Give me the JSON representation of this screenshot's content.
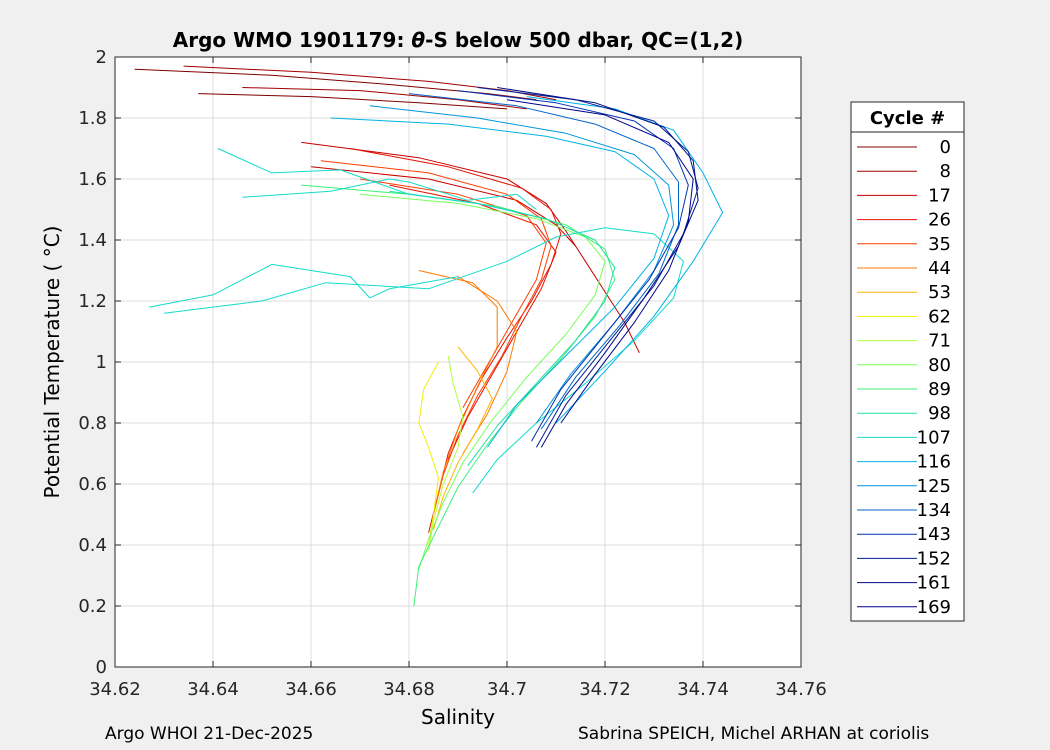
{
  "chart_data": {
    "type": "line",
    "title_prefix": "Argo WMO 1901179: ",
    "title_theta": "θ",
    "title_suffix": "-S below 500 dbar,  QC=(1,2)",
    "xlabel": "Salinity",
    "ylabel": "Potential Temperature ( °C)",
    "xlim": [
      34.62,
      34.76
    ],
    "ylim": [
      0,
      2
    ],
    "xticks": [
      34.62,
      34.64,
      34.66,
      34.68,
      34.7,
      34.72,
      34.74,
      34.76
    ],
    "xtick_labels": [
      "34.62",
      "34.64",
      "34.66",
      "34.68",
      "34.7",
      "34.72",
      "34.74",
      "34.76"
    ],
    "yticks": [
      0,
      0.2,
      0.4,
      0.6,
      0.8,
      1,
      1.2,
      1.4,
      1.6,
      1.8,
      2
    ],
    "ytick_labels": [
      "0",
      "0.2",
      "0.4",
      "0.6",
      "0.8",
      "1",
      "1.2",
      "1.4",
      "1.6",
      "1.8",
      "2"
    ],
    "grid": true,
    "legend": {
      "title": "Cycle #",
      "placement": "outside-right",
      "entries": [
        "0",
        "8",
        "17",
        "26",
        "35",
        "44",
        "53",
        "62",
        "71",
        "80",
        "89",
        "98",
        "107",
        "116",
        "125",
        "134",
        "143",
        "152",
        "161",
        "169"
      ],
      "colors": [
        "#800000",
        "#a00000",
        "#c80000",
        "#e60f00",
        "#ff3c00",
        "#ff7800",
        "#ffb400",
        "#f0f000",
        "#b4ff3c",
        "#78ff5a",
        "#3cf078",
        "#20e0a0",
        "#14dccc",
        "#00b4e6",
        "#0096dc",
        "#0064c8",
        "#0032b4",
        "#001e96",
        "#000a82",
        "#00008c"
      ]
    },
    "series_note": "colour runs dark red (cycle 0) to dark blue (cycle 169)",
    "series": [
      {
        "name": "0",
        "color": "#800000",
        "x": [
          34.624,
          34.652,
          34.676,
          34.696,
          34.706
        ],
        "y": [
          1.96,
          1.94,
          1.91,
          1.88,
          1.86
        ]
      },
      {
        "name": "0b",
        "color": "#800000",
        "x": [
          34.637,
          34.66,
          34.682,
          34.7
        ],
        "y": [
          1.88,
          1.87,
          1.85,
          1.83
        ]
      },
      {
        "name": "8",
        "color": "#a00000",
        "x": [
          34.634,
          34.66,
          34.684,
          34.7,
          34.71
        ],
        "y": [
          1.97,
          1.95,
          1.92,
          1.89,
          1.86
        ]
      },
      {
        "name": "8b",
        "color": "#a00000",
        "x": [
          34.646,
          34.67,
          34.69,
          34.704
        ],
        "y": [
          1.9,
          1.89,
          1.86,
          1.83
        ]
      },
      {
        "name": "17",
        "color": "#c80000",
        "x": [
          34.658,
          34.682,
          34.7,
          34.708,
          34.712,
          34.716,
          34.72,
          34.724,
          34.727
        ],
        "y": [
          1.72,
          1.67,
          1.6,
          1.52,
          1.43,
          1.33,
          1.23,
          1.13,
          1.03
        ]
      },
      {
        "name": "17b",
        "color": "#c80000",
        "x": [
          34.66,
          34.684,
          34.702,
          34.71,
          34.714
        ],
        "y": [
          1.64,
          1.6,
          1.53,
          1.45,
          1.38
        ]
      },
      {
        "name": "26",
        "color": "#e60f00",
        "x": [
          34.668,
          34.688,
          34.703,
          34.709,
          34.711,
          34.709,
          34.705,
          34.7,
          34.695,
          34.691,
          34.688,
          34.686,
          34.684
        ],
        "y": [
          1.7,
          1.64,
          1.57,
          1.5,
          1.42,
          1.32,
          1.2,
          1.08,
          0.95,
          0.82,
          0.7,
          0.57,
          0.44
        ]
      },
      {
        "name": "26b",
        "color": "#e60f00",
        "x": [
          34.676,
          34.694,
          34.706,
          34.71,
          34.707,
          34.702,
          34.697,
          34.692,
          34.688
        ],
        "y": [
          1.58,
          1.52,
          1.45,
          1.36,
          1.24,
          1.1,
          0.96,
          0.82,
          0.68
        ]
      },
      {
        "name": "35",
        "color": "#ff3c00",
        "x": [
          34.662,
          34.684,
          34.7,
          34.707,
          34.709,
          34.707,
          34.703,
          34.699,
          34.694,
          34.69,
          34.687,
          34.685
        ],
        "y": [
          1.66,
          1.62,
          1.55,
          1.47,
          1.38,
          1.27,
          1.15,
          1.02,
          0.89,
          0.76,
          0.63,
          0.5
        ]
      },
      {
        "name": "35b",
        "color": "#ff3c00",
        "x": [
          34.67,
          34.69,
          34.704,
          34.708,
          34.706,
          34.701,
          34.696,
          34.691
        ],
        "y": [
          1.6,
          1.55,
          1.48,
          1.39,
          1.27,
          1.13,
          0.99,
          0.85
        ]
      },
      {
        "name": "44",
        "color": "#ff7800",
        "x": [
          34.682,
          34.693,
          34.698,
          34.698,
          34.694,
          34.69,
          34.687,
          34.685
        ],
        "y": [
          1.3,
          1.26,
          1.18,
          1.05,
          0.92,
          0.78,
          0.64,
          0.5
        ]
      },
      {
        "name": "44b",
        "color": "#ff7800",
        "x": [
          34.69,
          34.698,
          34.702,
          34.7,
          34.696,
          34.691
        ],
        "y": [
          1.28,
          1.2,
          1.1,
          0.97,
          0.83,
          0.7
        ]
      },
      {
        "name": "53",
        "color": "#ffb400",
        "x": [
          34.69,
          34.694,
          34.697,
          34.694,
          34.69,
          34.687,
          34.685
        ],
        "y": [
          1.05,
          0.97,
          0.88,
          0.78,
          0.67,
          0.56,
          0.45
        ]
      },
      {
        "name": "62",
        "color": "#f0f000",
        "x": [
          34.686,
          34.683,
          34.682,
          34.684,
          34.686,
          34.685,
          34.684
        ],
        "y": [
          1.0,
          0.91,
          0.8,
          0.72,
          0.62,
          0.5,
          0.4
        ]
      },
      {
        "name": "71",
        "color": "#b4ff3c",
        "x": [
          34.688,
          34.689,
          34.691,
          34.69,
          34.687,
          34.685,
          34.684
        ],
        "y": [
          1.02,
          0.93,
          0.82,
          0.72,
          0.6,
          0.48,
          0.38
        ]
      },
      {
        "name": "80",
        "color": "#78ff5a",
        "x": [
          34.67,
          34.69,
          34.706,
          34.716,
          34.72,
          34.718,
          34.712,
          34.704,
          34.697,
          34.691,
          34.687,
          34.684,
          34.682
        ],
        "y": [
          1.55,
          1.52,
          1.47,
          1.41,
          1.33,
          1.22,
          1.09,
          0.95,
          0.81,
          0.67,
          0.54,
          0.42,
          0.32
        ]
      },
      {
        "name": "89",
        "color": "#3cf078",
        "x": [
          34.658,
          34.68,
          34.698,
          34.712,
          34.72,
          34.722,
          34.718,
          34.711,
          34.703,
          34.696,
          34.69,
          34.686,
          34.682,
          34.681
        ],
        "y": [
          1.58,
          1.55,
          1.51,
          1.45,
          1.37,
          1.27,
          1.15,
          1.01,
          0.87,
          0.73,
          0.59,
          0.46,
          0.33,
          0.2
        ]
      },
      {
        "name": "98",
        "color": "#20e0a0",
        "x": [
          34.676,
          34.694,
          34.708,
          34.718,
          34.722,
          34.72,
          34.714,
          34.706,
          34.698,
          34.692
        ],
        "y": [
          1.56,
          1.52,
          1.47,
          1.4,
          1.31,
          1.2,
          1.07,
          0.93,
          0.79,
          0.66
        ]
      },
      {
        "name": "107a",
        "color": "#14dccc",
        "x": [
          34.646,
          34.664,
          34.676,
          34.68,
          34.692,
          34.702,
          34.706
        ],
        "y": [
          1.54,
          1.56,
          1.6,
          1.59,
          1.53,
          1.55,
          1.5
        ]
      },
      {
        "name": "107b",
        "color": "#14dccc",
        "x": [
          34.627,
          34.64,
          34.652,
          34.668,
          34.672,
          34.676,
          34.69
        ],
        "y": [
          1.18,
          1.22,
          1.32,
          1.28,
          1.21,
          1.24,
          1.28
        ]
      },
      {
        "name": "107c",
        "color": "#14dccc",
        "x": [
          34.63,
          34.65,
          34.663,
          34.684,
          34.7,
          34.71,
          34.72,
          34.73,
          34.736,
          34.734,
          34.726,
          34.716,
          34.706,
          34.698,
          34.693
        ],
        "y": [
          1.16,
          1.2,
          1.26,
          1.24,
          1.33,
          1.41,
          1.44,
          1.42,
          1.33,
          1.21,
          1.07,
          0.93,
          0.8,
          0.68,
          0.57
        ]
      },
      {
        "name": "107d",
        "color": "#14dccc",
        "x": [
          34.641,
          34.652,
          34.666,
          34.68,
          34.694,
          34.705
        ],
        "y": [
          1.7,
          1.62,
          1.63,
          1.55,
          1.52,
          1.48
        ]
      },
      {
        "name": "116",
        "color": "#00b4e6",
        "x": [
          34.664,
          34.688,
          34.708,
          34.722,
          34.73,
          34.733,
          34.73,
          34.722,
          34.712,
          34.702,
          34.696
        ],
        "y": [
          1.8,
          1.78,
          1.74,
          1.69,
          1.6,
          1.48,
          1.34,
          1.18,
          1.02,
          0.86,
          0.72
        ]
      },
      {
        "name": "116b",
        "color": "#00b4e6",
        "x": [
          34.704,
          34.722,
          34.734,
          34.74,
          34.744,
          34.738,
          34.73,
          34.72,
          34.71
        ],
        "y": [
          1.87,
          1.83,
          1.76,
          1.62,
          1.49,
          1.33,
          1.15,
          0.97,
          0.8
        ]
      },
      {
        "name": "125",
        "color": "#0096dc",
        "x": [
          34.672,
          34.694,
          34.712,
          34.726,
          34.733,
          34.734,
          34.73,
          34.722,
          34.713,
          34.706
        ],
        "y": [
          1.84,
          1.8,
          1.75,
          1.68,
          1.58,
          1.45,
          1.3,
          1.13,
          0.96,
          0.8
        ]
      },
      {
        "name": "134",
        "color": "#0064c8",
        "x": [
          34.68,
          34.702,
          34.718,
          34.73,
          34.735,
          34.735,
          34.731,
          34.723,
          34.714,
          34.707
        ],
        "y": [
          1.88,
          1.84,
          1.78,
          1.7,
          1.59,
          1.45,
          1.29,
          1.12,
          0.95,
          0.78
        ]
      },
      {
        "name": "143",
        "color": "#0032b4",
        "x": [
          34.69,
          34.71,
          34.726,
          34.734,
          34.737,
          34.735,
          34.729,
          34.72,
          34.711,
          34.705
        ],
        "y": [
          1.89,
          1.85,
          1.79,
          1.7,
          1.58,
          1.44,
          1.27,
          1.09,
          0.91,
          0.74
        ]
      },
      {
        "name": "152",
        "color": "#001e96",
        "x": [
          34.694,
          34.714,
          34.73,
          34.737,
          34.739,
          34.736,
          34.73,
          34.721,
          34.712,
          34.706
        ],
        "y": [
          1.9,
          1.86,
          1.79,
          1.69,
          1.57,
          1.42,
          1.25,
          1.07,
          0.89,
          0.72
        ]
      },
      {
        "name": "161",
        "color": "#000a82",
        "x": [
          34.698,
          34.718,
          34.732,
          34.738,
          34.739,
          34.735,
          34.728,
          34.72,
          34.712,
          34.707
        ],
        "y": [
          1.9,
          1.85,
          1.77,
          1.66,
          1.53,
          1.38,
          1.21,
          1.03,
          0.86,
          0.72
        ]
      },
      {
        "name": "169",
        "color": "#00008c",
        "x": [
          34.7,
          34.72,
          34.733,
          34.738,
          34.737,
          34.733,
          34.726,
          34.718,
          34.711
        ],
        "y": [
          1.86,
          1.81,
          1.72,
          1.6,
          1.46,
          1.3,
          1.13,
          0.96,
          0.8
        ]
      }
    ]
  },
  "footer": {
    "left": "Argo WHOI 21-Dec-2025",
    "right": "Sabrina SPEICH, Michel ARHAN at coriolis"
  }
}
